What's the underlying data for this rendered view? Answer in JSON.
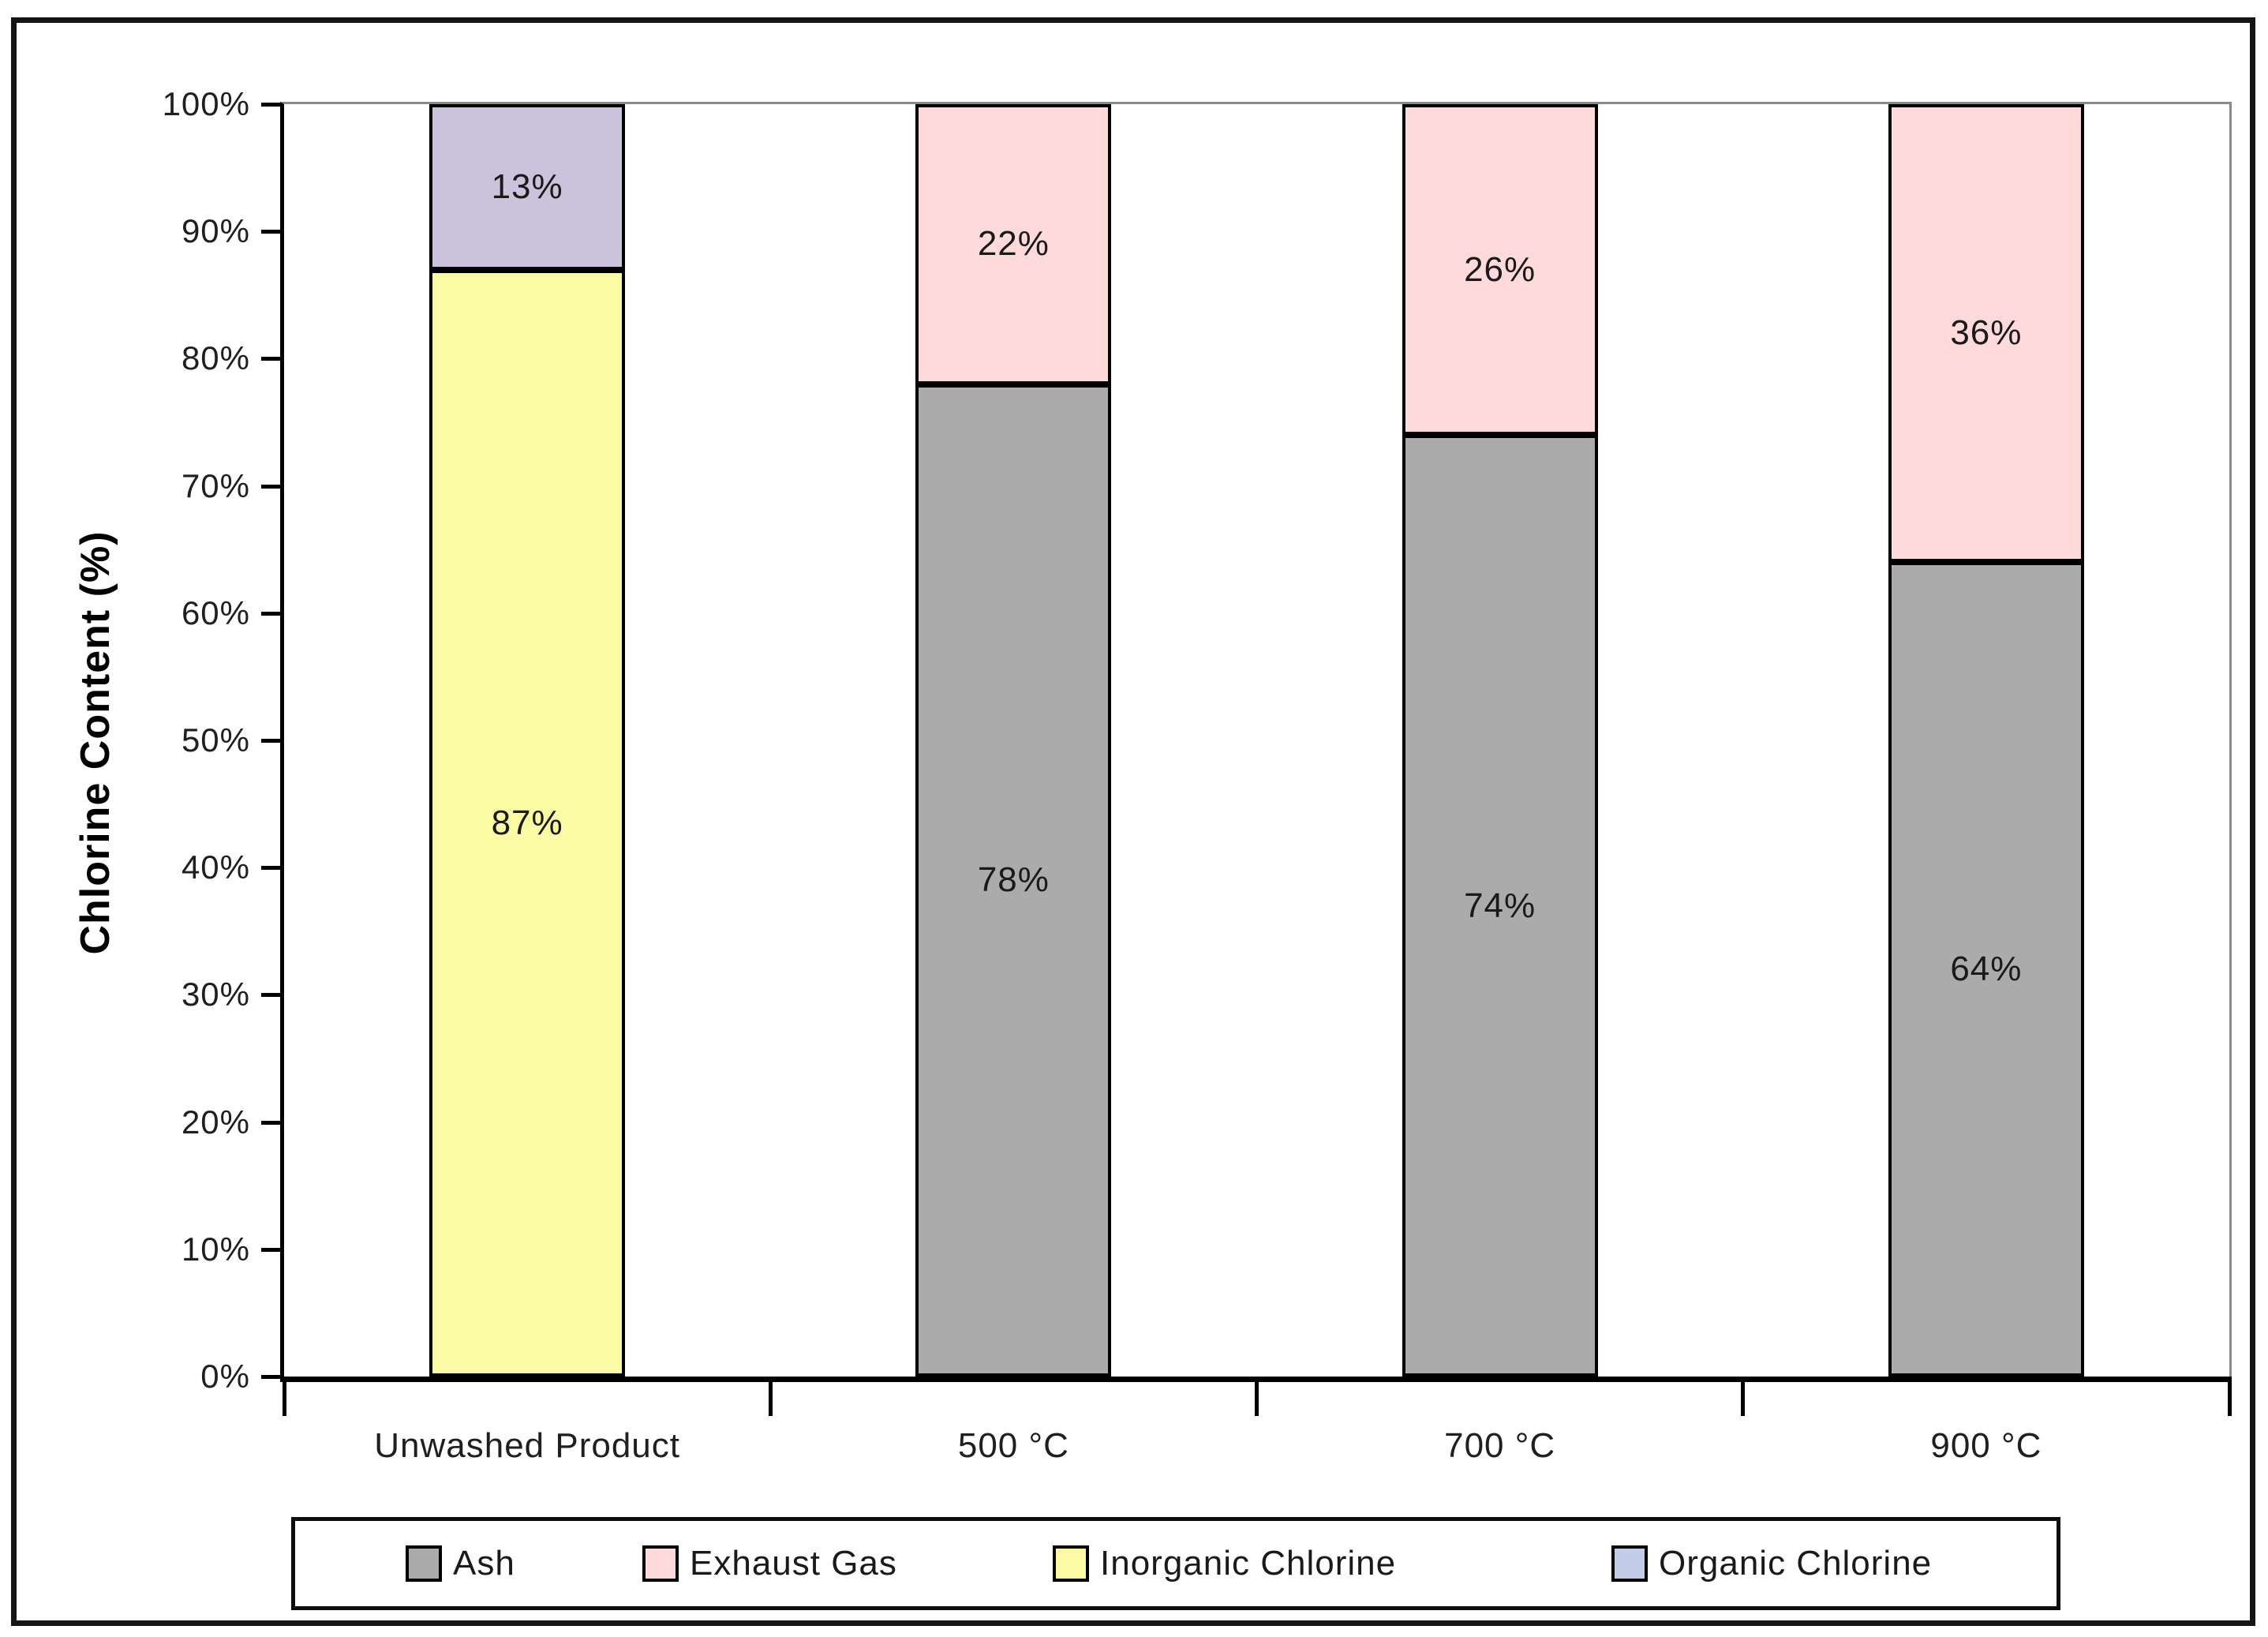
{
  "chart_data": {
    "type": "bar",
    "stacked": true,
    "title": "",
    "xlabel": "",
    "ylabel": "Chlorine Content (%)",
    "ylim": [
      0,
      100
    ],
    "ytick_values": [
      0,
      10,
      20,
      30,
      40,
      50,
      60,
      70,
      80,
      90,
      100
    ],
    "ytick_labels": [
      "0%",
      "10%",
      "20%",
      "30%",
      "40%",
      "50%",
      "60%",
      "70%",
      "80%",
      "90%",
      "100%"
    ],
    "categories": [
      "Unwashed Product",
      "500 °C",
      "700 °C",
      "900 °C"
    ],
    "series": [
      {
        "name": "Ash",
        "color": "#ABABAB",
        "values": [
          0,
          78,
          74,
          64
        ],
        "labels": [
          "",
          "78%",
          "74%",
          "64%"
        ]
      },
      {
        "name": "Exhaust Gas",
        "color": "#FFDADA",
        "values": [
          0,
          22,
          26,
          36
        ],
        "labels": [
          "",
          "22%",
          "26%",
          "36%"
        ]
      },
      {
        "name": "Inorganic Chlorine",
        "color": "#FBFBA6",
        "values": [
          87,
          0,
          0,
          0
        ],
        "labels": [
          "87%",
          "",
          "",
          ""
        ]
      },
      {
        "name": "Organic Chlorine",
        "color": "#CBC3DB",
        "legend_color": "#C3CDE9",
        "values": [
          13,
          0,
          0,
          0
        ],
        "labels": [
          "13%",
          "",
          "",
          ""
        ]
      }
    ],
    "legend_position": "bottom",
    "gridlines": "top-line-only",
    "axis_color": "#000000",
    "plot_border_color": "#8A8A8A",
    "segment_border_color": "#000000",
    "text_color": "#1A1A1A"
  }
}
